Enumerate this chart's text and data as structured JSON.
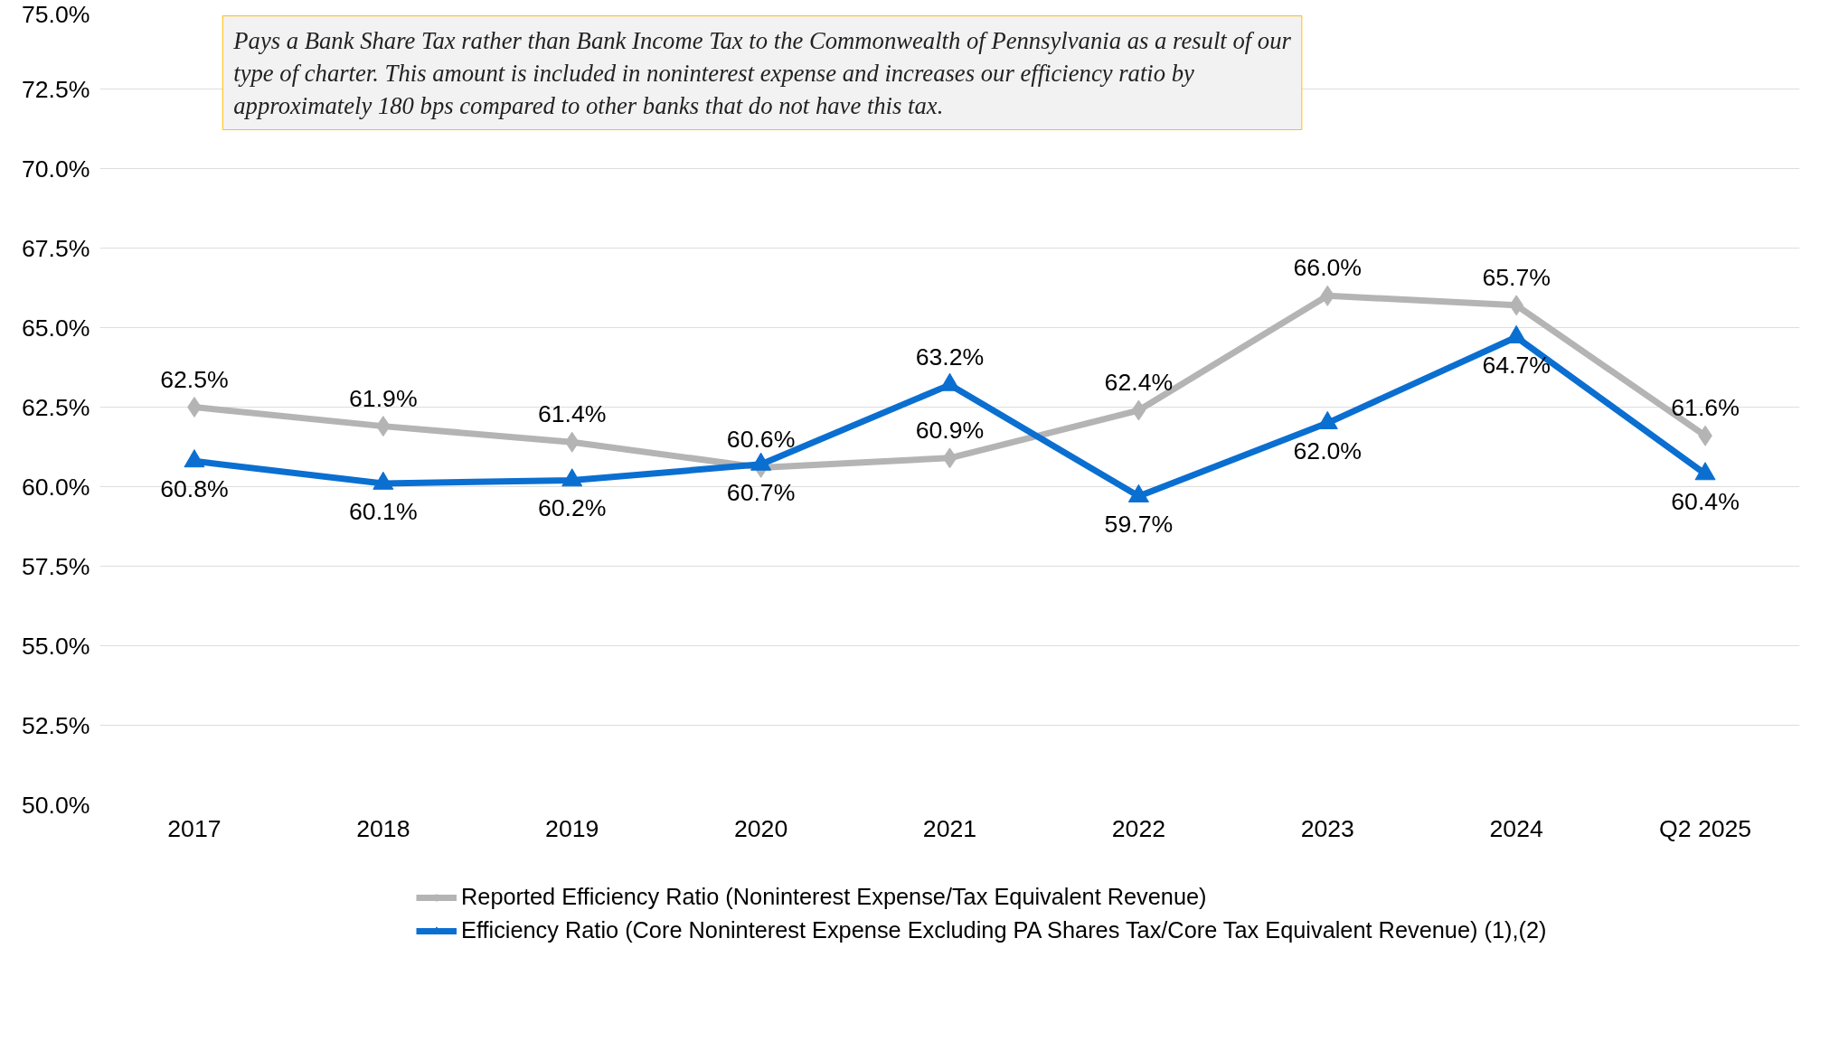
{
  "chart_data": {
    "type": "line",
    "categories": [
      "2017",
      "2018",
      "2019",
      "2020",
      "2021",
      "2022",
      "2023",
      "2024",
      "Q2 2025"
    ],
    "series": [
      {
        "name": "Reported Efficiency Ratio (Noninterest Expense/Tax Equivalent Revenue)",
        "color": "#b4b4b4",
        "marker": "diamond",
        "values": [
          62.5,
          61.9,
          61.4,
          60.6,
          60.9,
          62.4,
          66.0,
          65.7,
          61.6
        ],
        "value_labels": [
          "62.5%",
          "61.9%",
          "61.4%",
          "60.6%",
          "60.9%",
          "62.4%",
          "66.0%",
          "65.7%",
          "61.6%"
        ]
      },
      {
        "name": "Efficiency Ratio (Core Noninterest Expense Excluding PA Shares Tax/Core Tax Equivalent Revenue) (1),(2)",
        "color": "#0a6fd0",
        "marker": "triangle",
        "values": [
          60.8,
          60.1,
          60.2,
          60.7,
          63.2,
          59.7,
          62.0,
          64.7,
          60.4
        ],
        "value_labels": [
          "60.8%",
          "60.1%",
          "60.2%",
          "60.7%",
          "63.2%",
          "59.7%",
          "62.0%",
          "64.7%",
          "60.4%"
        ]
      }
    ],
    "ylim": [
      50,
      75
    ],
    "yticks": [
      {
        "value": 50,
        "label": "50.0%"
      },
      {
        "value": 52.5,
        "label": "52.5%"
      },
      {
        "value": 55,
        "label": "55.0%"
      },
      {
        "value": 57.5,
        "label": "57.5%"
      },
      {
        "value": 60,
        "label": "60.0%"
      },
      {
        "value": 62.5,
        "label": "62.5%"
      },
      {
        "value": 65,
        "label": "65.0%"
      },
      {
        "value": 67.5,
        "label": "67.5%"
      },
      {
        "value": 70,
        "label": "70.0%"
      },
      {
        "value": 72.5,
        "label": "72.5%"
      },
      {
        "value": 75,
        "label": "75.0%"
      }
    ],
    "grid": "y",
    "legend": "bottom",
    "line_style": "solid",
    "annotations": [
      "Pays a Bank Share Tax rather than Bank Income Tax to the Commonwealth of Pennsylvania as a result of our type of charter. This amount is included in noninterest expense and increases our efficiency ratio by approximately 180 bps compared to other banks that do not have this tax."
    ]
  }
}
